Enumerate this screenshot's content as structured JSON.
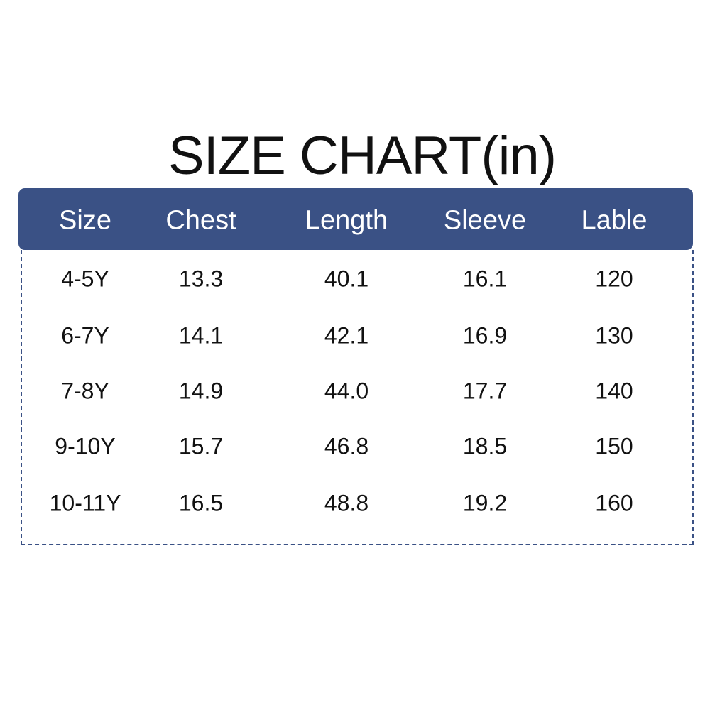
{
  "title": "SIZE CHART(in)",
  "colors": {
    "header_bg": "#3a5185",
    "header_text": "#ffffff",
    "border": "#3a5185",
    "text": "#111111"
  },
  "chart_data": {
    "type": "table",
    "title": "SIZE CHART(in)",
    "columns": [
      "Size",
      "Chest",
      "Length",
      "Sleeve",
      "Lable"
    ],
    "rows": [
      [
        "4-5Y",
        "13.3",
        "40.1",
        "16.1",
        "120"
      ],
      [
        "6-7Y",
        "14.1",
        "42.1",
        "16.9",
        "130"
      ],
      [
        "7-8Y",
        "14.9",
        "44.0",
        "17.7",
        "140"
      ],
      [
        "9-10Y",
        "15.7",
        "46.8",
        "18.5",
        "150"
      ],
      [
        "10-11Y",
        "16.5",
        "48.8",
        "19.2",
        "160"
      ]
    ]
  }
}
